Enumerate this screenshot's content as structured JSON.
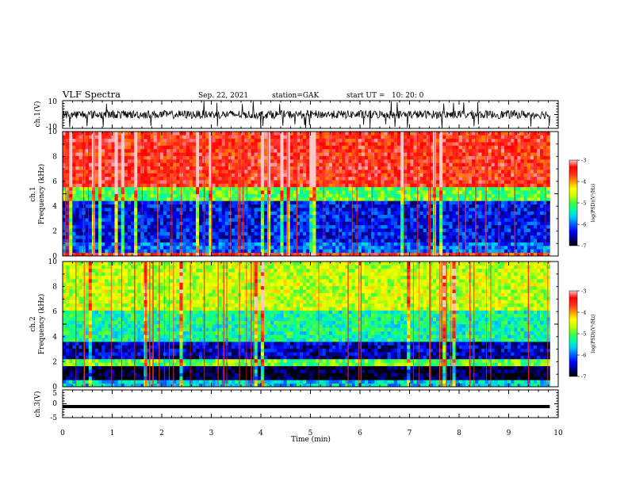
{
  "header": {
    "title": "VLF Spectra",
    "date": "Sep. 22, 2021",
    "station": "station=GAK",
    "start": "start UT =   10: 20: 0"
  },
  "colors": {
    "scale": [
      "#000000",
      "#00007f",
      "#0000ff",
      "#0060ff",
      "#00c8ff",
      "#00ffa0",
      "#40ff40",
      "#c8ff00",
      "#ffff00",
      "#ff9900",
      "#ff3020",
      "#ff0000",
      "#ffc8c8"
    ]
  },
  "chart_data": [
    {
      "type": "line",
      "panel": "ch1-waveform",
      "ylabel": "ch.1(V)",
      "ylim": [
        -10,
        10
      ],
      "yticklabels": [
        "10",
        "-10"
      ],
      "xlim": [
        0,
        10
      ],
      "trace": {
        "mean": 0.0,
        "amplitude_typical": 3.0,
        "amplitude_max": 10.0,
        "tmax": 9.83
      }
    },
    {
      "type": "heatmap",
      "panel": "ch1-spectrogram",
      "ylabel": "ch.1\nFrequency (kHz)",
      "xlim": [
        0,
        10
      ],
      "ylim": [
        0,
        10
      ],
      "yticks": [
        "0",
        "2",
        "4",
        "6",
        "8",
        "10"
      ],
      "tmax": 9.83,
      "bands": [
        {
          "f0": 0.0,
          "f1": 0.4,
          "logpsd": -3.6
        },
        {
          "f0": 0.4,
          "f1": 1.0,
          "logpsd": -6.0
        },
        {
          "f0": 1.0,
          "f1": 4.5,
          "logpsd": -6.3
        },
        {
          "f0": 4.5,
          "f1": 5.5,
          "logpsd": -5.0
        },
        {
          "f0": 5.5,
          "f1": 10.0,
          "logpsd": -3.5
        }
      ],
      "colorbar": {
        "label": "log(PSD)(V²/Hz)",
        "range": [
          -7,
          -3
        ],
        "ticks": [
          "-3",
          "-4",
          "-5",
          "-6",
          "-7"
        ]
      }
    },
    {
      "type": "heatmap",
      "panel": "ch2-spectrogram",
      "ylabel": "ch.2\nFrequency (kHz)",
      "xlim": [
        0,
        10
      ],
      "ylim": [
        0,
        10
      ],
      "yticks": [
        "0",
        "2",
        "4",
        "6",
        "8",
        "10"
      ],
      "tmax": 9.83,
      "bands": [
        {
          "f0": 0.0,
          "f1": 0.5,
          "logpsd": -5.6
        },
        {
          "f0": 0.5,
          "f1": 1.7,
          "logpsd": -6.9
        },
        {
          "f0": 1.7,
          "f1": 2.1,
          "logpsd": -5.0
        },
        {
          "f0": 2.1,
          "f1": 3.5,
          "logpsd": -6.5
        },
        {
          "f0": 3.5,
          "f1": 6.0,
          "logpsd": -5.3
        },
        {
          "f0": 6.0,
          "f1": 10.0,
          "logpsd": -4.6
        }
      ],
      "colorbar": {
        "label": "log(PSD)(V²/Hz)",
        "range": [
          -7,
          -3
        ],
        "ticks": [
          "-3",
          "-4",
          "-5",
          "-6",
          "-7"
        ]
      }
    },
    {
      "type": "line",
      "panel": "ch3-waveform",
      "ylabel": "ch.3(V)",
      "ylim": [
        -5,
        5
      ],
      "yticklabels": [
        "5",
        "0",
        "-5"
      ],
      "xlim": [
        0,
        10
      ],
      "xlabel": "Time (min)",
      "xticks": [
        "0",
        "1",
        "2",
        "3",
        "4",
        "5",
        "6",
        "7",
        "8",
        "9",
        "10"
      ],
      "trace": {
        "value": -1.0,
        "tmax": 9.83
      }
    }
  ]
}
